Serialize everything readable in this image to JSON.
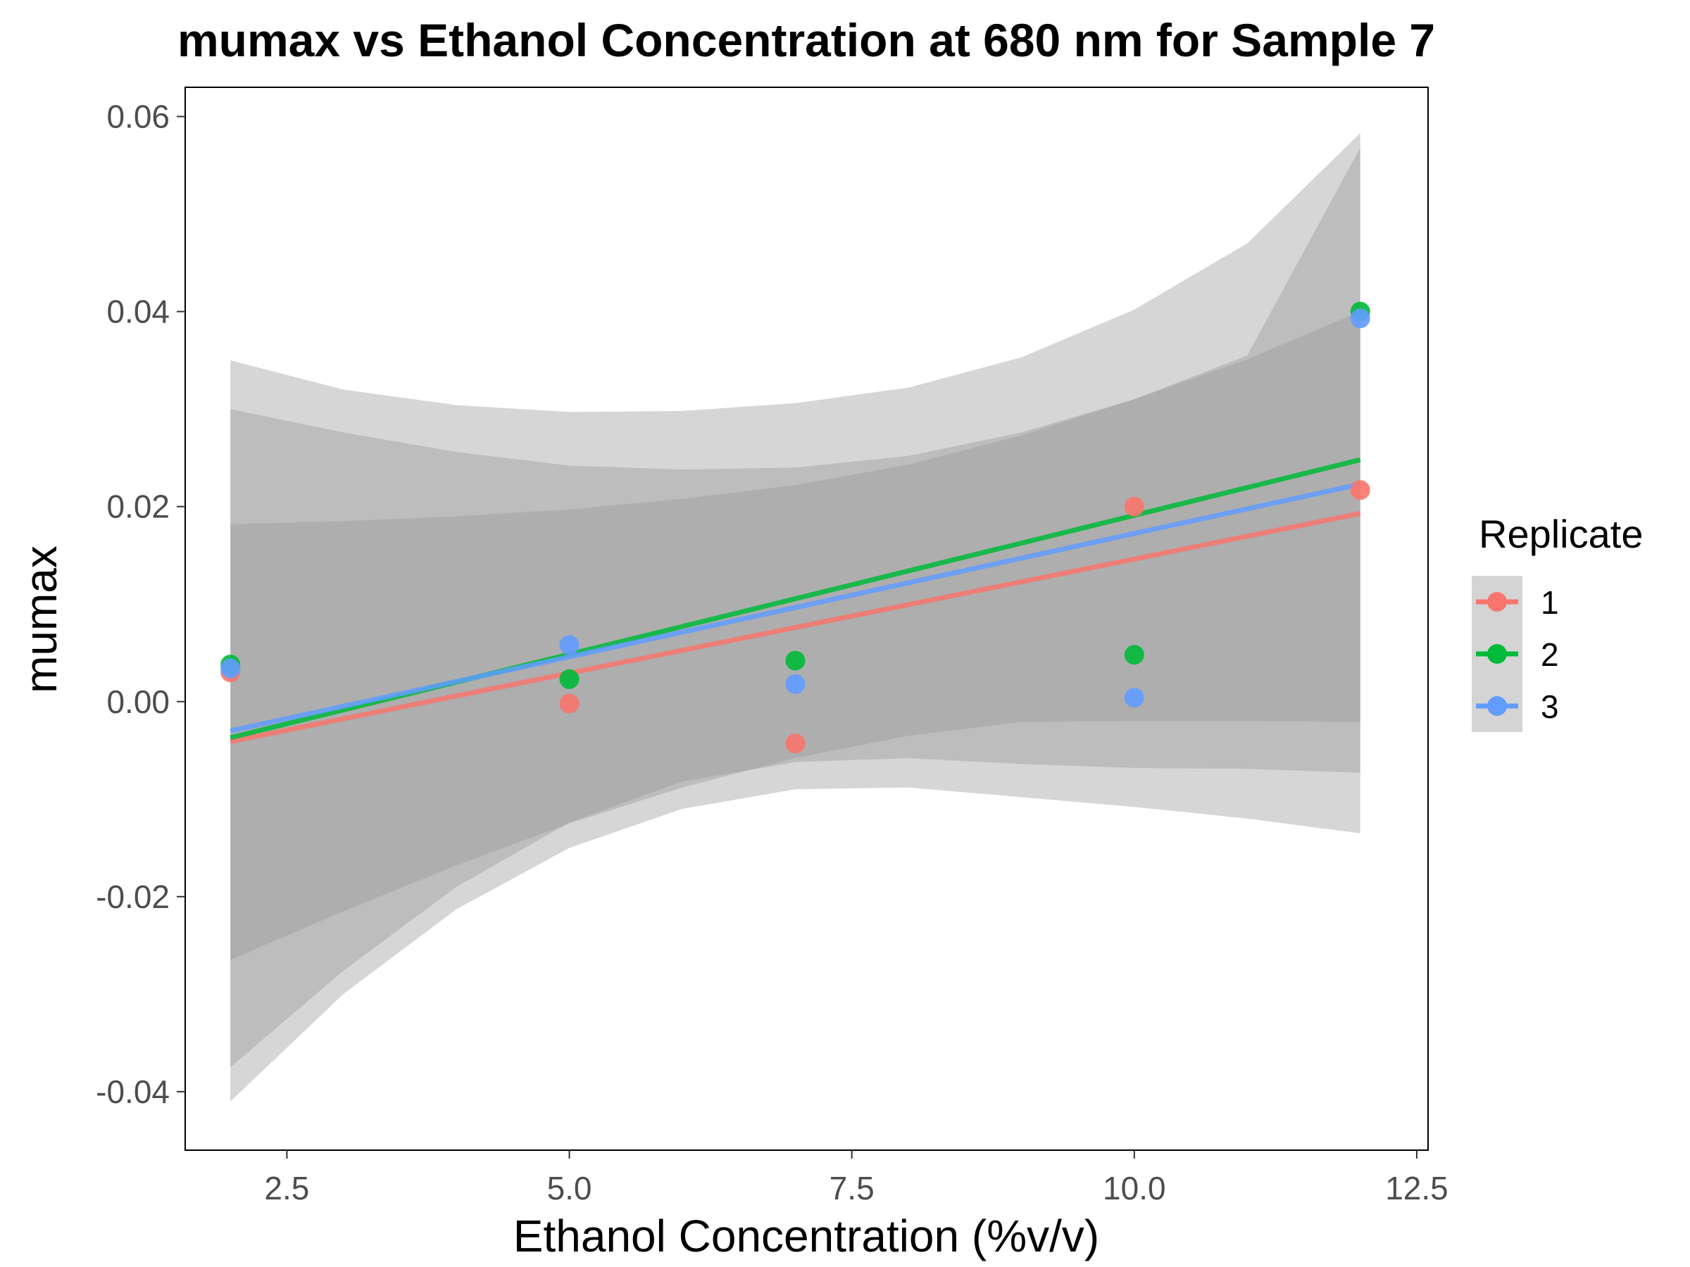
{
  "chart_data": {
    "type": "scatter",
    "title": "mumax vs Ethanol Concentration at 680 nm for Sample 7",
    "xlabel": "Ethanol Concentration (%v/v)",
    "ylabel": "mumax",
    "xlim": [
      1.6,
      12.6
    ],
    "ylim": [
      -0.046,
      0.063
    ],
    "x_ticks": [
      2.5,
      5.0,
      7.5,
      10.0,
      12.5
    ],
    "x_tick_labels": [
      "2.5",
      "5.0",
      "7.5",
      "10.0",
      "12.5"
    ],
    "y_ticks": [
      -0.04,
      -0.02,
      0.0,
      0.02,
      0.04,
      0.06
    ],
    "y_tick_labels": [
      "-0.04",
      "-0.02",
      "0.00",
      "0.02",
      "0.04",
      "0.06"
    ],
    "grid": false,
    "legend": {
      "title": "Replicate",
      "position": "right"
    },
    "series": [
      {
        "name": "1",
        "color": "#F8766D",
        "x": [
          2,
          5,
          7,
          10,
          12
        ],
        "y": [
          0.003,
          -0.0002,
          -0.0043,
          0.02,
          0.0217
        ],
        "fit": {
          "x": [
            2,
            12
          ],
          "y": [
            -0.0041,
            0.0193
          ]
        },
        "ci_band": {
          "x": [
            2,
            3,
            4,
            5,
            6,
            7,
            8,
            9,
            10,
            11,
            12
          ],
          "lower": [
            -0.0375,
            -0.0276,
            -0.019,
            -0.0124,
            -0.0082,
            -0.0062,
            -0.0058,
            -0.0064,
            -0.0068,
            -0.0069,
            -0.0073
          ],
          "upper": [
            0.03,
            0.0276,
            0.0256,
            0.0242,
            0.0238,
            0.024,
            0.0252,
            0.0276,
            0.031,
            0.0351,
            0.04
          ]
        }
      },
      {
        "name": "2",
        "color": "#00BA38",
        "x": [
          2,
          5,
          7,
          10,
          12
        ],
        "y": [
          0.0038,
          0.0023,
          0.0042,
          0.0048,
          0.04
        ],
        "fit": {
          "x": [
            2,
            12
          ],
          "y": [
            -0.0037,
            0.0248
          ]
        },
        "ci_band": {
          "x": [
            2,
            3,
            4,
            5,
            6,
            7,
            8,
            9,
            10,
            11,
            12
          ],
          "lower": [
            -0.041,
            -0.03,
            -0.0213,
            -0.015,
            -0.011,
            -0.009,
            -0.0088,
            -0.0098,
            -0.0108,
            -0.012,
            -0.0135
          ],
          "upper": [
            0.035,
            0.032,
            0.0304,
            0.0297,
            0.0298,
            0.0306,
            0.0322,
            0.0353,
            0.0402,
            0.047,
            0.0583
          ]
        }
      },
      {
        "name": "3",
        "color": "#619CFF",
        "x": [
          2,
          5,
          7,
          10,
          12
        ],
        "y": [
          0.0034,
          0.0058,
          0.0018,
          0.0004,
          0.0393
        ],
        "fit": {
          "x": [
            2,
            12
          ],
          "y": [
            -0.003,
            0.0223
          ]
        },
        "ci_band": {
          "x": [
            2,
            3,
            4,
            5,
            6,
            7,
            8,
            9,
            10,
            11,
            12
          ],
          "lower": [
            -0.0265,
            -0.0215,
            -0.0168,
            -0.0125,
            -0.0088,
            -0.0058,
            -0.0035,
            -0.0021,
            -0.002,
            -0.002,
            -0.0021
          ],
          "upper": [
            0.0182,
            0.0185,
            0.019,
            0.0197,
            0.0208,
            0.0222,
            0.0243,
            0.0273,
            0.031,
            0.0355,
            0.0568
          ]
        }
      }
    ]
  }
}
